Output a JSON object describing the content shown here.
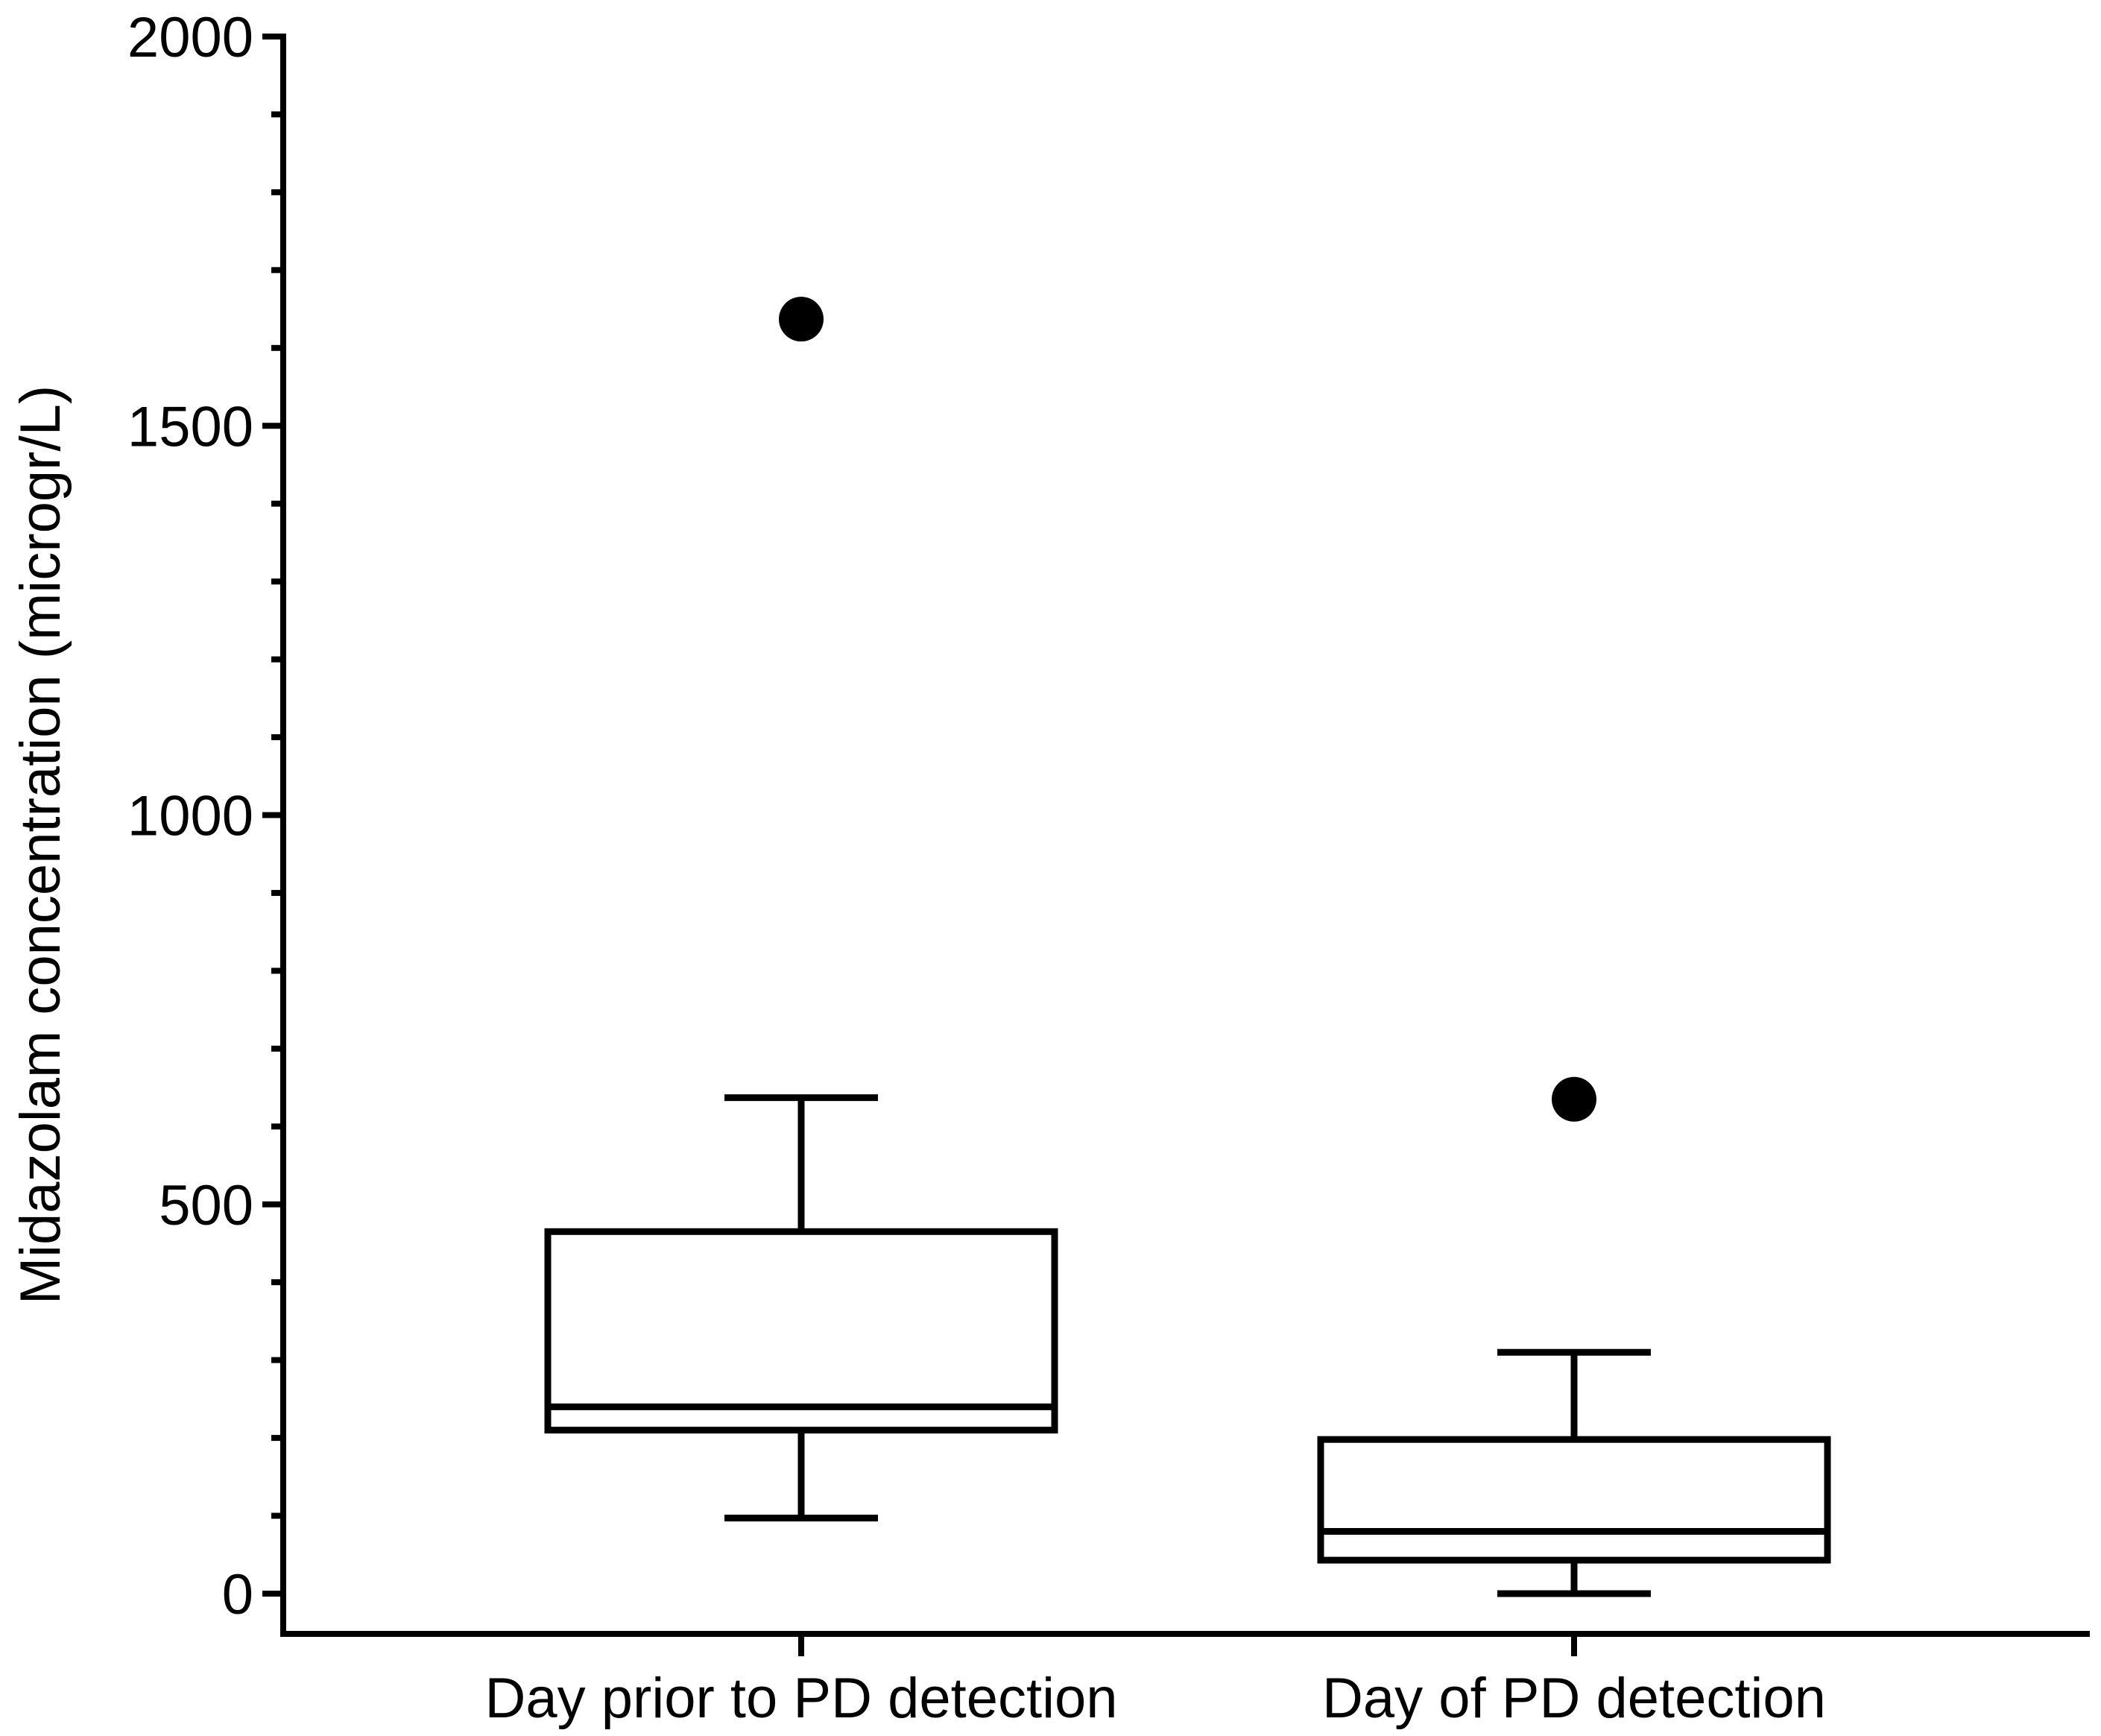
{
  "chart_data": {
    "type": "box",
    "title": "",
    "xlabel": "",
    "ylabel": "Midazolam concentration (microgr/L)",
    "ylim": [
      -50,
      2000
    ],
    "major_ticks": [
      0,
      500,
      1000,
      1500,
      2000
    ],
    "minor_tick_step": 100,
    "categories": [
      "Day prior to PD detection",
      "Day of PD detection"
    ],
    "boxes": [
      {
        "category": "Day prior to PD detection",
        "whisker_low": 97,
        "q1": 210,
        "median": 240,
        "q3": 465,
        "whisker_high": 637,
        "outliers": [
          1637
        ]
      },
      {
        "category": "Day of PD detection",
        "whisker_low": 0,
        "q1": 43,
        "median": 80,
        "q3": 198,
        "whisker_high": 310,
        "outliers": [
          635
        ]
      }
    ],
    "colors": {
      "line": "#000000",
      "fill": "#ffffff",
      "outlier": "#000000"
    }
  }
}
